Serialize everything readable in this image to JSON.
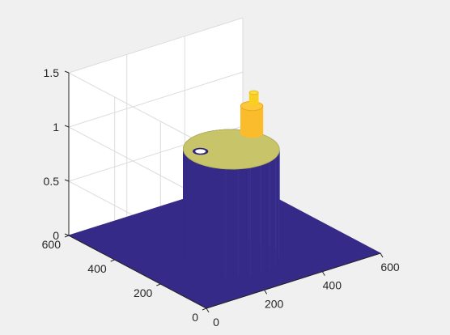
{
  "chart_data": {
    "type": "surface",
    "title": "",
    "xlabel": "",
    "ylabel": "",
    "zlabel": "",
    "x_ticks": [
      "0",
      "200",
      "400",
      "600"
    ],
    "y_ticks": [
      "0",
      "200",
      "400",
      "600"
    ],
    "z_ticks": [
      "0",
      "0.5",
      "1",
      "1.5"
    ],
    "xlim": [
      0,
      600
    ],
    "ylim": [
      0,
      600
    ],
    "zlim": [
      0,
      1.5
    ],
    "grid": true,
    "colormap": "parula",
    "colors": {
      "background": "#f0f0f0",
      "axes_face": "#ffffff",
      "low": "#352a87",
      "mid": "#c8c46a",
      "high": "#fbbc2c",
      "peak": "#f9d020"
    },
    "surface_features": [
      {
        "name": "base-plane",
        "z": 0
      },
      {
        "name": "cylinder-body",
        "center": [
          260,
          220
        ],
        "radius": 130,
        "z": 1.0
      },
      {
        "name": "cylinder-hole",
        "center": [
          185,
          260
        ],
        "radius": 20,
        "z": 0
      },
      {
        "name": "raised-boss",
        "center": [
          370,
          270
        ],
        "radius": 30,
        "z": 1.25
      },
      {
        "name": "raised-peak",
        "center": [
          385,
          280
        ],
        "radius": 12,
        "z": 1.35
      }
    ]
  }
}
